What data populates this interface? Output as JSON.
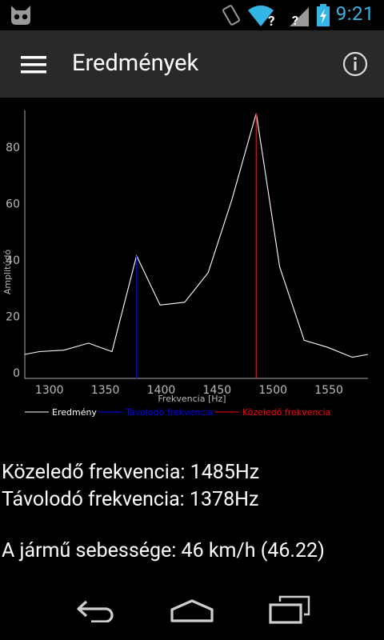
{
  "status_bar": {
    "time": "9:21"
  },
  "action_bar": {
    "title": "Eredmények"
  },
  "chart_data": {
    "type": "line",
    "xlabel": "Frekvencia [Hz]",
    "ylabel": "Amplitúdó",
    "xlim": [
      1278,
      1585
    ],
    "ylim": [
      -2,
      93
    ],
    "x_ticks": [
      1300,
      1350,
      1400,
      1450,
      1500,
      1550
    ],
    "y_ticks": [
      0,
      20,
      40,
      60,
      80
    ],
    "series": [
      {
        "name": "Eredmény",
        "color": "#ffffff",
        "x": [
          1278,
          1291,
          1313,
          1335,
          1356,
          1378,
          1399,
          1421,
          1442,
          1463,
          1485,
          1506,
          1528,
          1549,
          1571,
          1585
        ],
        "y": [
          6.5,
          7.5,
          8,
          10.5,
          7.5,
          41.5,
          24,
          25,
          35.5,
          61,
          92,
          37.5,
          11.5,
          9,
          5.5,
          6.5
        ]
      },
      {
        "name": "Távolodó frekvencia",
        "color": "#0000ff",
        "x": [
          1378,
          1378
        ],
        "y": [
          -2,
          41.5
        ]
      },
      {
        "name": "Közeledő frekvencia",
        "color": "#ff0000",
        "x": [
          1485,
          1485
        ],
        "y": [
          -2,
          92
        ]
      }
    ]
  },
  "results": {
    "approaching": "Közeledő frekvencia: 1485Hz",
    "receding": "Távolodó frekvencia: 1378Hz",
    "speed": "A jármű sebessége: 46 km/h (46.22)"
  }
}
